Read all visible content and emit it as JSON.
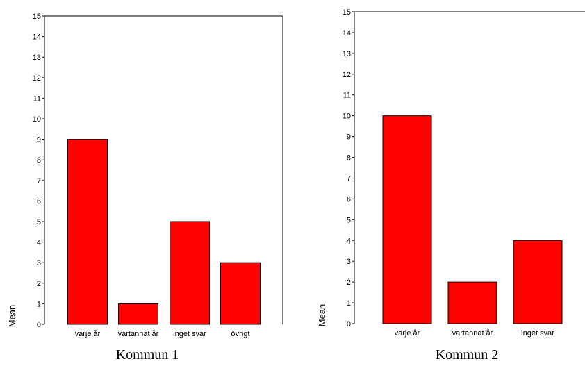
{
  "bar_color": "#ff0000",
  "chart_data": [
    {
      "type": "bar",
      "title": "",
      "caption": "Kommun 1",
      "xlabel": "",
      "ylabel": "Mean",
      "ylim": [
        0,
        15
      ],
      "yticks": [
        0,
        1,
        2,
        3,
        4,
        5,
        6,
        7,
        8,
        9,
        10,
        11,
        12,
        13,
        14,
        15
      ],
      "categories": [
        "varje år",
        "vartannat år",
        "inget svar",
        "övrigt"
      ],
      "values": [
        9,
        1,
        5,
        3
      ],
      "grid": false,
      "frame": "left-top-right"
    },
    {
      "type": "bar",
      "title": "",
      "caption": "Kommun 2",
      "xlabel": "",
      "ylabel": "Mean",
      "ylim": [
        0,
        15
      ],
      "yticks": [
        0,
        1,
        2,
        3,
        4,
        5,
        6,
        7,
        8,
        9,
        10,
        11,
        12,
        13,
        14,
        15
      ],
      "categories": [
        "varje år",
        "vartannat år",
        "inget svar"
      ],
      "values": [
        10,
        2,
        4
      ],
      "grid": false,
      "frame": "left-top-right"
    }
  ]
}
